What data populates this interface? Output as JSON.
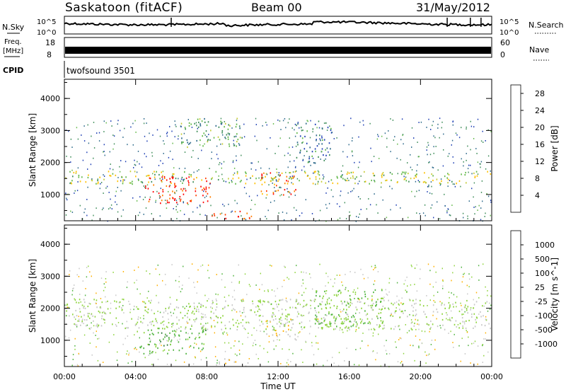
{
  "header": {
    "station": "Saskatoon (fitACF)",
    "beam": "Beam 00",
    "date": "31/May/2012"
  },
  "noise_panel": {
    "left_label": "N.Sky",
    "right_label": "N.Search",
    "ticks": [
      "10^5",
      "10^0"
    ]
  },
  "freq_panel": {
    "left_label_1": "Freq.",
    "left_label_2": "[MHz]",
    "left_ticks": [
      "18",
      "8"
    ],
    "right_label": "Nave",
    "right_ticks": [
      "60",
      "0"
    ]
  },
  "cpid_panel": {
    "label": "CPID",
    "value": "twofsound 3501"
  },
  "colors": {
    "power_scale": [
      "#0000ff",
      "#1e3fb4",
      "#2f6b8c",
      "#3f8e5a",
      "#63b94a",
      "#c6cc3a",
      "#ffc000",
      "#ff8000",
      "#ff3c00",
      "#ff0000"
    ],
    "velocity_scale": [
      "#1c3fc8",
      "#2a5f9a",
      "#2f7d3a",
      "#4fb33f",
      "#8fd43f",
      "#c8c8c8",
      "#ffb000",
      "#ff7a00",
      "#ff4000",
      "#ff0000"
    ]
  },
  "chart_data": [
    {
      "type": "heatmap",
      "title": "",
      "xlabel": "",
      "ylabel": "Slant Range [km]",
      "yticks": [
        "1000",
        "2000",
        "3000",
        "4000"
      ],
      "ylim": [
        180,
        4600
      ],
      "xlim": [
        0,
        24
      ],
      "colorbar": {
        "label": "Power [dB]",
        "ticks": [
          "4",
          "8",
          "12",
          "16",
          "20",
          "24",
          "28"
        ],
        "range": [
          0,
          30
        ]
      },
      "features": [
        {
          "t": [
            0,
            24
          ],
          "range": [
            1350,
            1750
          ],
          "value": 16
        },
        {
          "t": [
            4.5,
            8.3
          ],
          "range": [
            750,
            1600
          ],
          "value": 27
        },
        {
          "t": [
            11.0,
            13.0
          ],
          "range": [
            1000,
            1700
          ],
          "value": 24
        },
        {
          "t": [
            8.0,
            10.5
          ],
          "range": [
            250,
            500
          ],
          "value": 27
        },
        {
          "t": [
            6.5,
            10.0
          ],
          "range": [
            2500,
            3400
          ],
          "value": 12
        },
        {
          "t": [
            13.0,
            15.0
          ],
          "range": [
            2000,
            3300
          ],
          "value": 8
        }
      ]
    },
    {
      "type": "heatmap",
      "title": "",
      "xlabel": "Time UT",
      "ylabel": "Slant Range [km]",
      "xticks": [
        "00:00",
        "04:00",
        "08:00",
        "12:00",
        "16:00",
        "20:00",
        "00:00"
      ],
      "yticks": [
        "1000",
        "2000",
        "3000",
        "4000"
      ],
      "ylim": [
        180,
        4600
      ],
      "xlim": [
        0,
        24
      ],
      "colorbar": {
        "label": "Velocity [m s^-1]",
        "ticks": [
          "1000",
          "500",
          "100",
          "25",
          "-25",
          "-100",
          "-500",
          "-1000"
        ],
        "range": [
          -1000,
          1000
        ]
      },
      "features": [
        {
          "t": [
            0,
            24
          ],
          "range": [
            1350,
            2300
          ],
          "value": 0
        },
        {
          "t": [
            4.0,
            8.0
          ],
          "range": [
            600,
            1400
          ],
          "value": -300
        },
        {
          "t": [
            11.3,
            13.0
          ],
          "range": [
            1000,
            1700
          ],
          "value": 150
        },
        {
          "t": [
            14.0,
            18.0
          ],
          "range": [
            1400,
            2600
          ],
          "value": -200
        },
        {
          "t": [
            8.5,
            10.5
          ],
          "range": [
            250,
            450
          ],
          "value": 150
        }
      ]
    }
  ]
}
